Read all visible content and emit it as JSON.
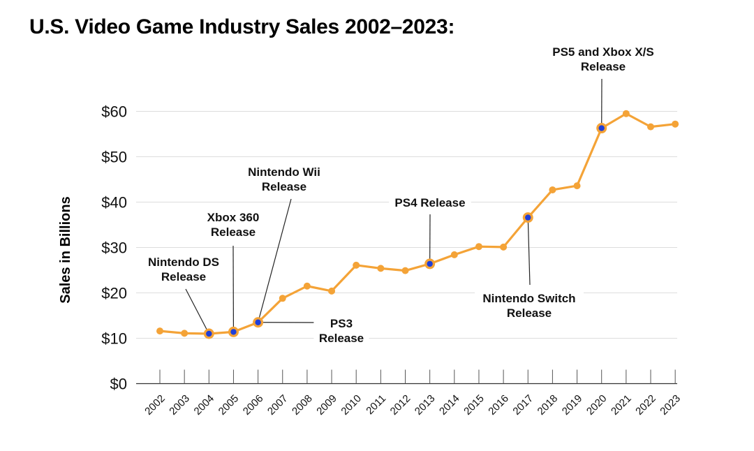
{
  "chart_data": {
    "type": "line",
    "title": "U.S. Video Game Industry Sales 2002–2023:",
    "xlabel": "",
    "ylabel": "Sales in Billions",
    "ylim": [
      0,
      60
    ],
    "yticks": [
      0,
      10,
      20,
      30,
      40,
      50,
      60
    ],
    "ytick_labels": [
      "$0",
      "$10",
      "$20",
      "$30",
      "$40",
      "$50",
      "$60"
    ],
    "x": [
      "2002",
      "2003",
      "2004",
      "2005",
      "2006",
      "2007",
      "2008",
      "2009",
      "2010",
      "2011",
      "2012",
      "2013",
      "2014",
      "2015",
      "2016",
      "2017",
      "2018",
      "2019",
      "2020",
      "2021",
      "2022",
      "2023"
    ],
    "series": [
      {
        "name": "Sales",
        "values": [
          11.6,
          11.1,
          11.0,
          11.4,
          13.5,
          18.8,
          21.5,
          20.4,
          26.1,
          25.4,
          24.9,
          26.4,
          28.4,
          30.2,
          30.1,
          36.6,
          42.7,
          43.6,
          56.3,
          59.5,
          56.6,
          57.2
        ]
      }
    ],
    "colors": {
      "line": "#F4A337",
      "highlight": "#1F3FD9",
      "grid": "#DDDDDD"
    },
    "annotations": [
      {
        "year": "2004",
        "lines": [
          "Nintendo DS",
          "Release"
        ]
      },
      {
        "year": "2005",
        "lines": [
          "Xbox 360",
          "Release"
        ]
      },
      {
        "year": "2006",
        "lines": [
          "Nintendo Wii",
          "Release"
        ]
      },
      {
        "year": "2006",
        "lines": [
          "PS3",
          "Release"
        ]
      },
      {
        "year": "2013",
        "lines": [
          "PS4 Release"
        ]
      },
      {
        "year": "2017",
        "lines": [
          "Nintendo Switch",
          "Release"
        ]
      },
      {
        "year": "2020",
        "lines": [
          "PS5 and Xbox X/S",
          "Release"
        ]
      }
    ]
  }
}
